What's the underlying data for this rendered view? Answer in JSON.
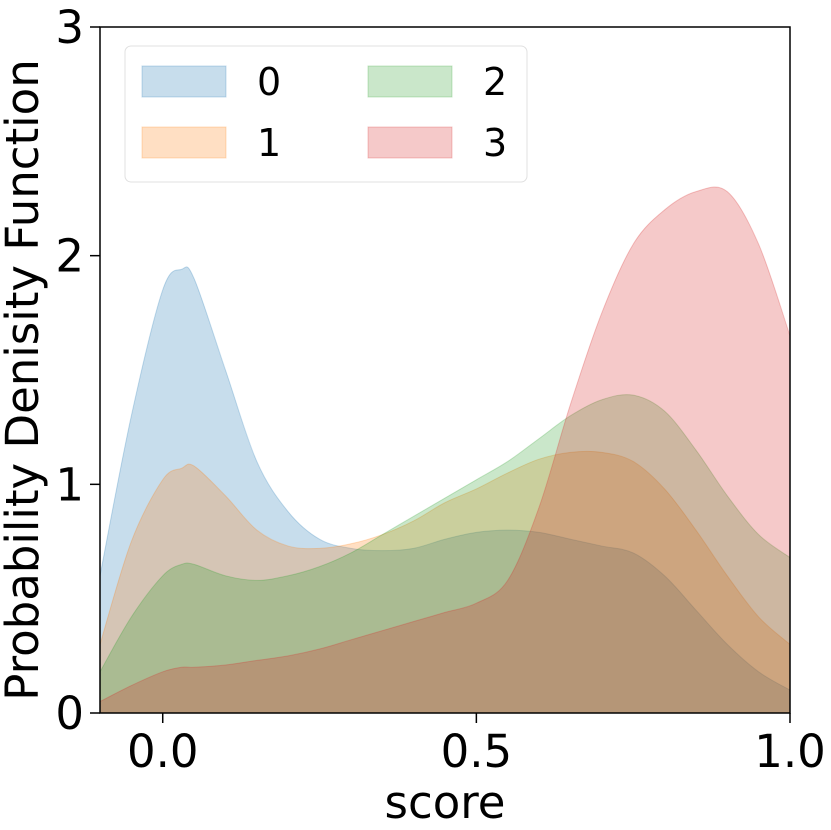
{
  "chart_data": {
    "type": "area",
    "title": "",
    "xlabel": "score",
    "ylabel": "Probability Denisity Function",
    "xlim": [
      -0.1,
      1.0
    ],
    "ylim": [
      0,
      3
    ],
    "x_ticks": [
      "0.0",
      "0.5",
      "1.0"
    ],
    "x_tick_values": [
      0.0,
      0.5,
      1.0
    ],
    "y_ticks": [
      "0",
      "1",
      "2",
      "3"
    ],
    "y_tick_values": [
      0,
      1,
      2,
      3
    ],
    "grid": false,
    "legend_position": "top-left",
    "legend_columns": 2,
    "x": [
      -0.1,
      -0.05,
      0.0,
      0.03,
      0.05,
      0.1,
      0.15,
      0.2,
      0.25,
      0.3,
      0.35,
      0.4,
      0.45,
      0.5,
      0.55,
      0.6,
      0.65,
      0.7,
      0.75,
      0.8,
      0.85,
      0.9,
      0.95,
      1.0
    ],
    "series": [
      {
        "name": "0",
        "color": "#1f77b4",
        "values": [
          0.6,
          1.3,
          1.85,
          1.94,
          1.9,
          1.5,
          1.1,
          0.88,
          0.76,
          0.72,
          0.71,
          0.72,
          0.76,
          0.79,
          0.8,
          0.79,
          0.76,
          0.73,
          0.7,
          0.6,
          0.45,
          0.3,
          0.18,
          0.1
        ]
      },
      {
        "name": "1",
        "color": "#ff7f0e",
        "values": [
          0.3,
          0.75,
          1.02,
          1.07,
          1.08,
          0.95,
          0.8,
          0.73,
          0.72,
          0.74,
          0.78,
          0.84,
          0.92,
          0.98,
          1.05,
          1.11,
          1.14,
          1.14,
          1.1,
          0.98,
          0.8,
          0.6,
          0.42,
          0.3
        ]
      },
      {
        "name": "2",
        "color": "#2ca02c",
        "values": [
          0.18,
          0.42,
          0.6,
          0.65,
          0.65,
          0.6,
          0.58,
          0.6,
          0.64,
          0.7,
          0.78,
          0.86,
          0.94,
          1.02,
          1.1,
          1.2,
          1.3,
          1.37,
          1.39,
          1.32,
          1.15,
          0.95,
          0.78,
          0.68
        ]
      },
      {
        "name": "3",
        "color": "#d62728",
        "values": [
          0.05,
          0.12,
          0.18,
          0.2,
          0.2,
          0.21,
          0.23,
          0.25,
          0.28,
          0.32,
          0.36,
          0.4,
          0.44,
          0.48,
          0.58,
          0.9,
          1.35,
          1.75,
          2.05,
          2.2,
          2.28,
          2.28,
          2.05,
          1.65
        ]
      }
    ]
  }
}
